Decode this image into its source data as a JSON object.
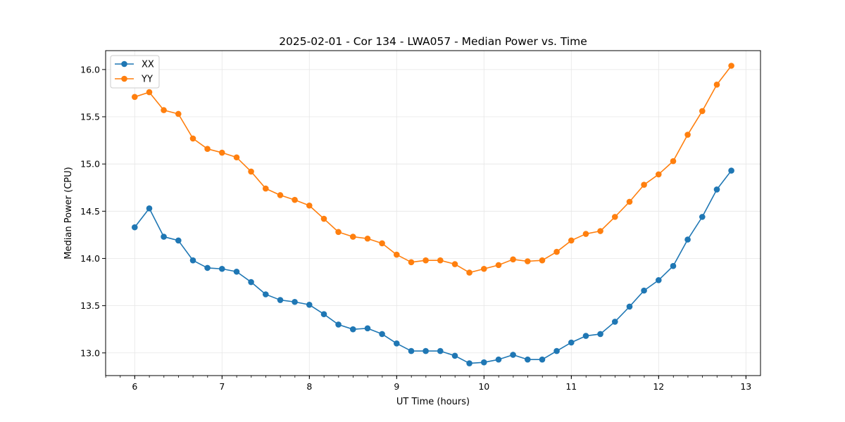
{
  "chart_data": {
    "type": "line",
    "title": "2025-02-01 - Cor 134 - LWA057 - Median Power vs. Time",
    "xlabel": "UT Time (hours)",
    "ylabel": "Median Power (CPU)",
    "xlim": [
      5.667,
      13.167
    ],
    "ylim": [
      12.76,
      16.2
    ],
    "xticks": [
      6,
      7,
      8,
      9,
      10,
      11,
      12,
      13
    ],
    "yticks": [
      13.0,
      13.5,
      14.0,
      14.5,
      15.0,
      15.5,
      16.0
    ],
    "xtick_labels": [
      "6",
      "7",
      "8",
      "9",
      "10",
      "11",
      "12",
      "13"
    ],
    "ytick_labels": [
      "13.0",
      "13.5",
      "14.0",
      "14.5",
      "15.0",
      "15.5",
      "16.0"
    ],
    "x_minor_step": 0.1667,
    "grid": true,
    "legend_position": "top-left",
    "x": [
      6.0,
      6.167,
      6.333,
      6.5,
      6.667,
      6.833,
      7.0,
      7.167,
      7.333,
      7.5,
      7.667,
      7.833,
      8.0,
      8.167,
      8.333,
      8.5,
      8.667,
      8.833,
      9.0,
      9.167,
      9.333,
      9.5,
      9.667,
      9.833,
      10.0,
      10.167,
      10.333,
      10.5,
      10.667,
      10.833,
      11.0,
      11.167,
      11.333,
      11.5,
      11.667,
      11.833,
      12.0,
      12.167,
      12.333,
      12.5,
      12.667,
      12.833
    ],
    "series": [
      {
        "name": "XX",
        "color": "#1f77b4",
        "values": [
          14.33,
          14.53,
          14.23,
          14.19,
          13.98,
          13.9,
          13.89,
          13.86,
          13.75,
          13.62,
          13.56,
          13.54,
          13.51,
          13.41,
          13.3,
          13.25,
          13.26,
          13.2,
          13.1,
          13.02,
          13.02,
          13.02,
          12.97,
          12.89,
          12.9,
          12.93,
          12.98,
          12.93,
          12.93,
          13.02,
          13.11,
          13.18,
          13.2,
          13.33,
          13.49,
          13.66,
          13.77,
          13.92,
          14.2,
          14.44,
          14.73,
          14.93
        ]
      },
      {
        "name": "YY",
        "color": "#ff7f0e",
        "values": [
          15.71,
          15.76,
          15.57,
          15.53,
          15.27,
          15.16,
          15.12,
          15.07,
          14.92,
          14.74,
          14.67,
          14.62,
          14.56,
          14.42,
          14.28,
          14.23,
          14.21,
          14.16,
          14.04,
          13.96,
          13.98,
          13.98,
          13.94,
          13.85,
          13.89,
          13.93,
          13.99,
          13.97,
          13.98,
          14.07,
          14.19,
          14.26,
          14.29,
          14.44,
          14.6,
          14.78,
          14.89,
          15.03,
          15.31,
          15.56,
          15.84,
          16.04
        ]
      }
    ]
  }
}
